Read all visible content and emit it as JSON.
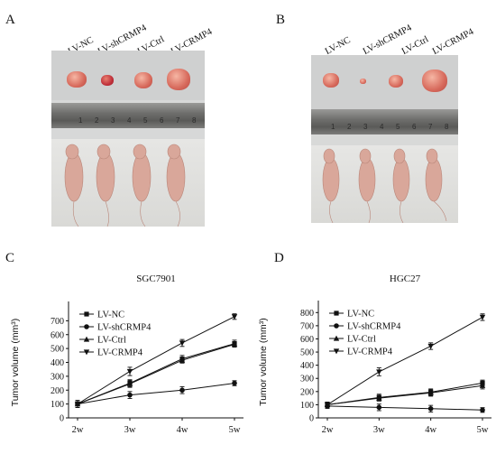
{
  "panels": {
    "A": "A",
    "B": "B",
    "C": "C",
    "D": "D"
  },
  "photo_labels": [
    "LV-NC",
    "LV-shCRMP4",
    "LV-Ctrl",
    "LV-CRMP4"
  ],
  "ruler_ticks": [
    "1",
    "2",
    "3",
    "4",
    "5",
    "6",
    "7",
    "8"
  ],
  "chart_data": [
    {
      "type": "line",
      "title": "SGC7901",
      "xlabel": "",
      "ylabel": "Tumor volume (mm³)",
      "categories": [
        "2w",
        "3w",
        "4w",
        "5w"
      ],
      "ylim": [
        0,
        800
      ],
      "yticks": [
        0,
        100,
        200,
        300,
        400,
        500,
        600,
        700
      ],
      "series": [
        {
          "name": "LV-NC",
          "marker": "square",
          "values": [
            100,
            250,
            425,
            535
          ],
          "errors": [
            25,
            25,
            25,
            25
          ]
        },
        {
          "name": "LV-shCRMP4",
          "marker": "circle",
          "values": [
            100,
            165,
            200,
            250
          ],
          "errors": [
            25,
            25,
            25,
            18
          ]
        },
        {
          "name": "LV-Ctrl",
          "marker": "triangle-up",
          "values": [
            100,
            245,
            415,
            530
          ],
          "errors": [
            25,
            25,
            20,
            20
          ]
        },
        {
          "name": "LV-CRMP4",
          "marker": "triangle-down",
          "values": [
            100,
            335,
            540,
            730
          ],
          "errors": [
            25,
            30,
            25,
            20
          ]
        }
      ],
      "legend": "top-left"
    },
    {
      "type": "line",
      "title": "HGC27",
      "xlabel": "",
      "ylabel": "Tumor volume (mm³)",
      "categories": [
        "2w",
        "3w",
        "4w",
        "5w"
      ],
      "ylim": [
        0,
        850
      ],
      "yticks": [
        0,
        100,
        200,
        300,
        400,
        500,
        600,
        700,
        800
      ],
      "series": [
        {
          "name": "LV-NC",
          "marker": "square",
          "values": [
            100,
            155,
            195,
            265
          ],
          "errors": [
            20,
            25,
            25,
            22
          ]
        },
        {
          "name": "LV-shCRMP4",
          "marker": "circle",
          "values": [
            90,
            80,
            70,
            60
          ],
          "errors": [
            18,
            25,
            25,
            18
          ]
        },
        {
          "name": "LV-Ctrl",
          "marker": "triangle-up",
          "values": [
            100,
            150,
            190,
            245
          ],
          "errors": [
            20,
            22,
            25,
            25
          ]
        },
        {
          "name": "LV-CRMP4",
          "marker": "triangle-down",
          "values": [
            100,
            350,
            545,
            765
          ],
          "errors": [
            20,
            30,
            25,
            25
          ]
        }
      ],
      "legend": "top-left"
    }
  ]
}
